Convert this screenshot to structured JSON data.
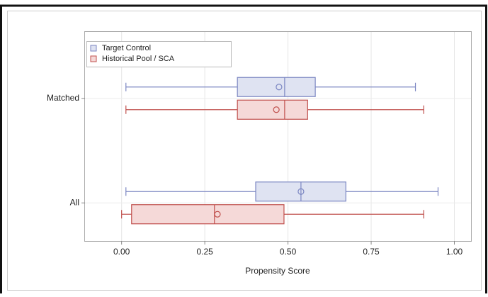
{
  "chart_data": {
    "type": "boxplot",
    "orientation": "horizontal",
    "x_label": "Propensity Score",
    "categories": [
      "Matched",
      "All"
    ],
    "xlim": [
      -0.11,
      1.05
    ],
    "xticks": [
      {
        "value": 0,
        "label": "0.00"
      },
      {
        "value": 0.25,
        "label": "0.25"
      },
      {
        "value": 0.5,
        "label": "0.50"
      },
      {
        "value": 0.75,
        "label": "0.75"
      },
      {
        "value": 1,
        "label": "1.00"
      }
    ],
    "grid": true,
    "legend": "top-left",
    "series": [
      {
        "name": "Target Control",
        "color": "#7b86c2",
        "fill": "#dfe3f2",
        "values": [
          {
            "min": 0.013,
            "q1": 0.348,
            "median": 0.49,
            "q3": 0.582,
            "max": 0.883,
            "mean": 0.473
          },
          {
            "min": 0.013,
            "q1": 0.403,
            "median": 0.539,
            "q3": 0.674,
            "max": 0.951,
            "mean": 0.539
          }
        ]
      },
      {
        "name": "Historical Pool / SCA",
        "color": "#c0504d",
        "fill": "#f5d9d8",
        "values": [
          {
            "min": 0.013,
            "q1": 0.348,
            "median": 0.49,
            "q3": 0.559,
            "max": 0.908,
            "mean": 0.465
          },
          {
            "min": 0.0,
            "q1": 0.03,
            "median": 0.279,
            "q3": 0.488,
            "max": 0.908,
            "mean": 0.288
          }
        ]
      }
    ]
  }
}
